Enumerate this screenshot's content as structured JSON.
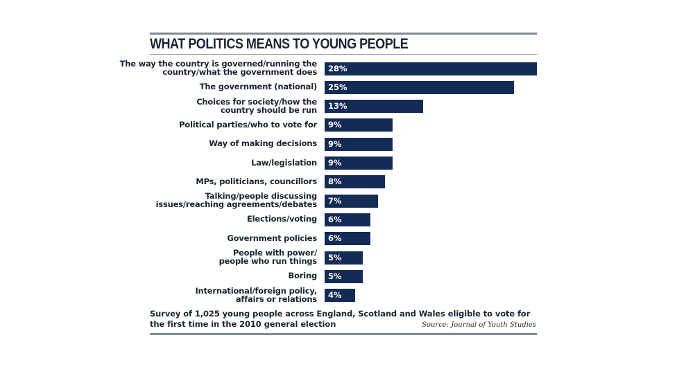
{
  "chart_data": {
    "type": "bar",
    "orientation": "horizontal",
    "title": "WHAT POLITICS MEANS TO YOUNG PEOPLE",
    "categories": [
      [
        "The way the country is governed/running the",
        "country/what the government does"
      ],
      [
        "The government (national)"
      ],
      [
        "Choices for society/how the",
        "country should be run"
      ],
      [
        "Political parties/who to vote for"
      ],
      [
        "Way of making decisions"
      ],
      [
        "Law/legislation"
      ],
      [
        "MPs, politicians, councillors"
      ],
      [
        "Talking/people discussing",
        "issues/reaching agreements/debates"
      ],
      [
        "Elections/voting"
      ],
      [
        "Government policies"
      ],
      [
        "People with power/",
        "people who run things"
      ],
      [
        "Boring"
      ],
      [
        "International/foreign policy,",
        "affairs or relations"
      ]
    ],
    "values": [
      28,
      25,
      13,
      9,
      9,
      9,
      8,
      7,
      6,
      6,
      5,
      5,
      4
    ],
    "value_labels": [
      "28%",
      "25%",
      "13%",
      "9%",
      "9%",
      "9%",
      "8%",
      "7%",
      "6%",
      "6%",
      "5%",
      "5%",
      "4%"
    ],
    "xlabel": "",
    "ylabel": "",
    "xlim": [
      0,
      28
    ],
    "grid": false,
    "bar_color": "#132b55",
    "note": [
      "Survey of 1,025 young people across England, Scotland and Wales eligible to vote for",
      "the first time in the 2010 general election"
    ],
    "source": "Source: Journal of Youth Studies"
  }
}
